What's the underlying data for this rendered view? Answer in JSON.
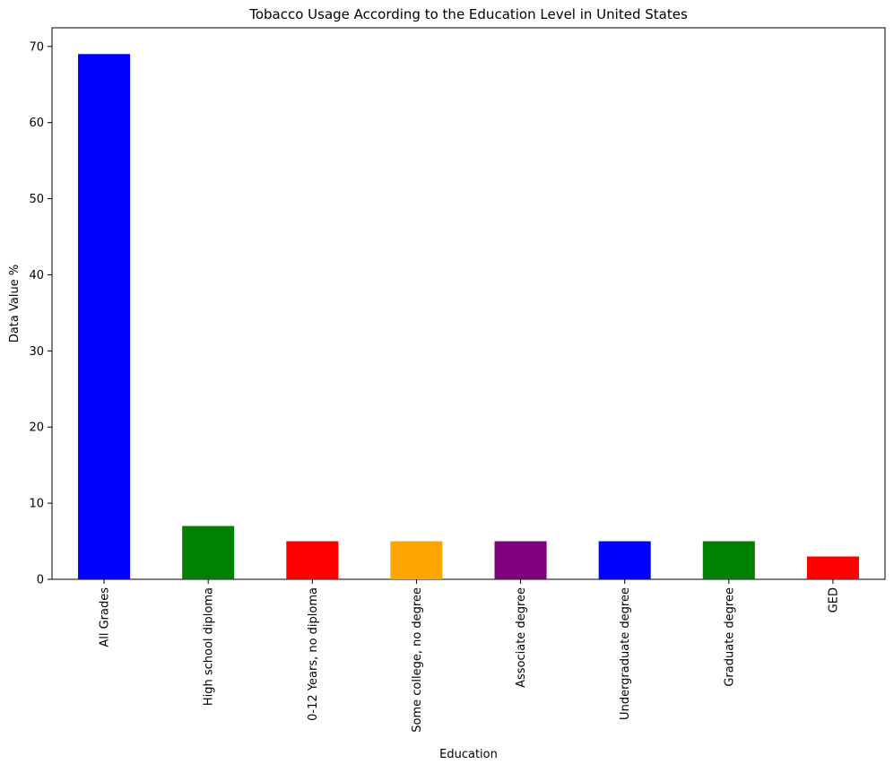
{
  "chart_data": {
    "type": "bar",
    "title": "Tobacco Usage According to the Education Level in United States",
    "xlabel": "Education",
    "ylabel": "Data Value %",
    "categories": [
      "All Grades",
      "High school diploma",
      "0-12 Years, no diploma",
      "Some college, no degree",
      "Associate degree",
      "Undergraduate degree",
      "Graduate degree",
      "GED"
    ],
    "values": [
      69,
      7,
      5,
      5,
      5,
      5,
      5,
      3
    ],
    "colors": [
      "#0000ff",
      "#008000",
      "#ff0000",
      "#ffa500",
      "#800080",
      "#0000ff",
      "#008000",
      "#ff0000"
    ],
    "ylim": [
      0,
      72.45
    ],
    "yticks": [
      0,
      10,
      20,
      30,
      40,
      50,
      60,
      70
    ],
    "grid": false,
    "legend": "none"
  }
}
